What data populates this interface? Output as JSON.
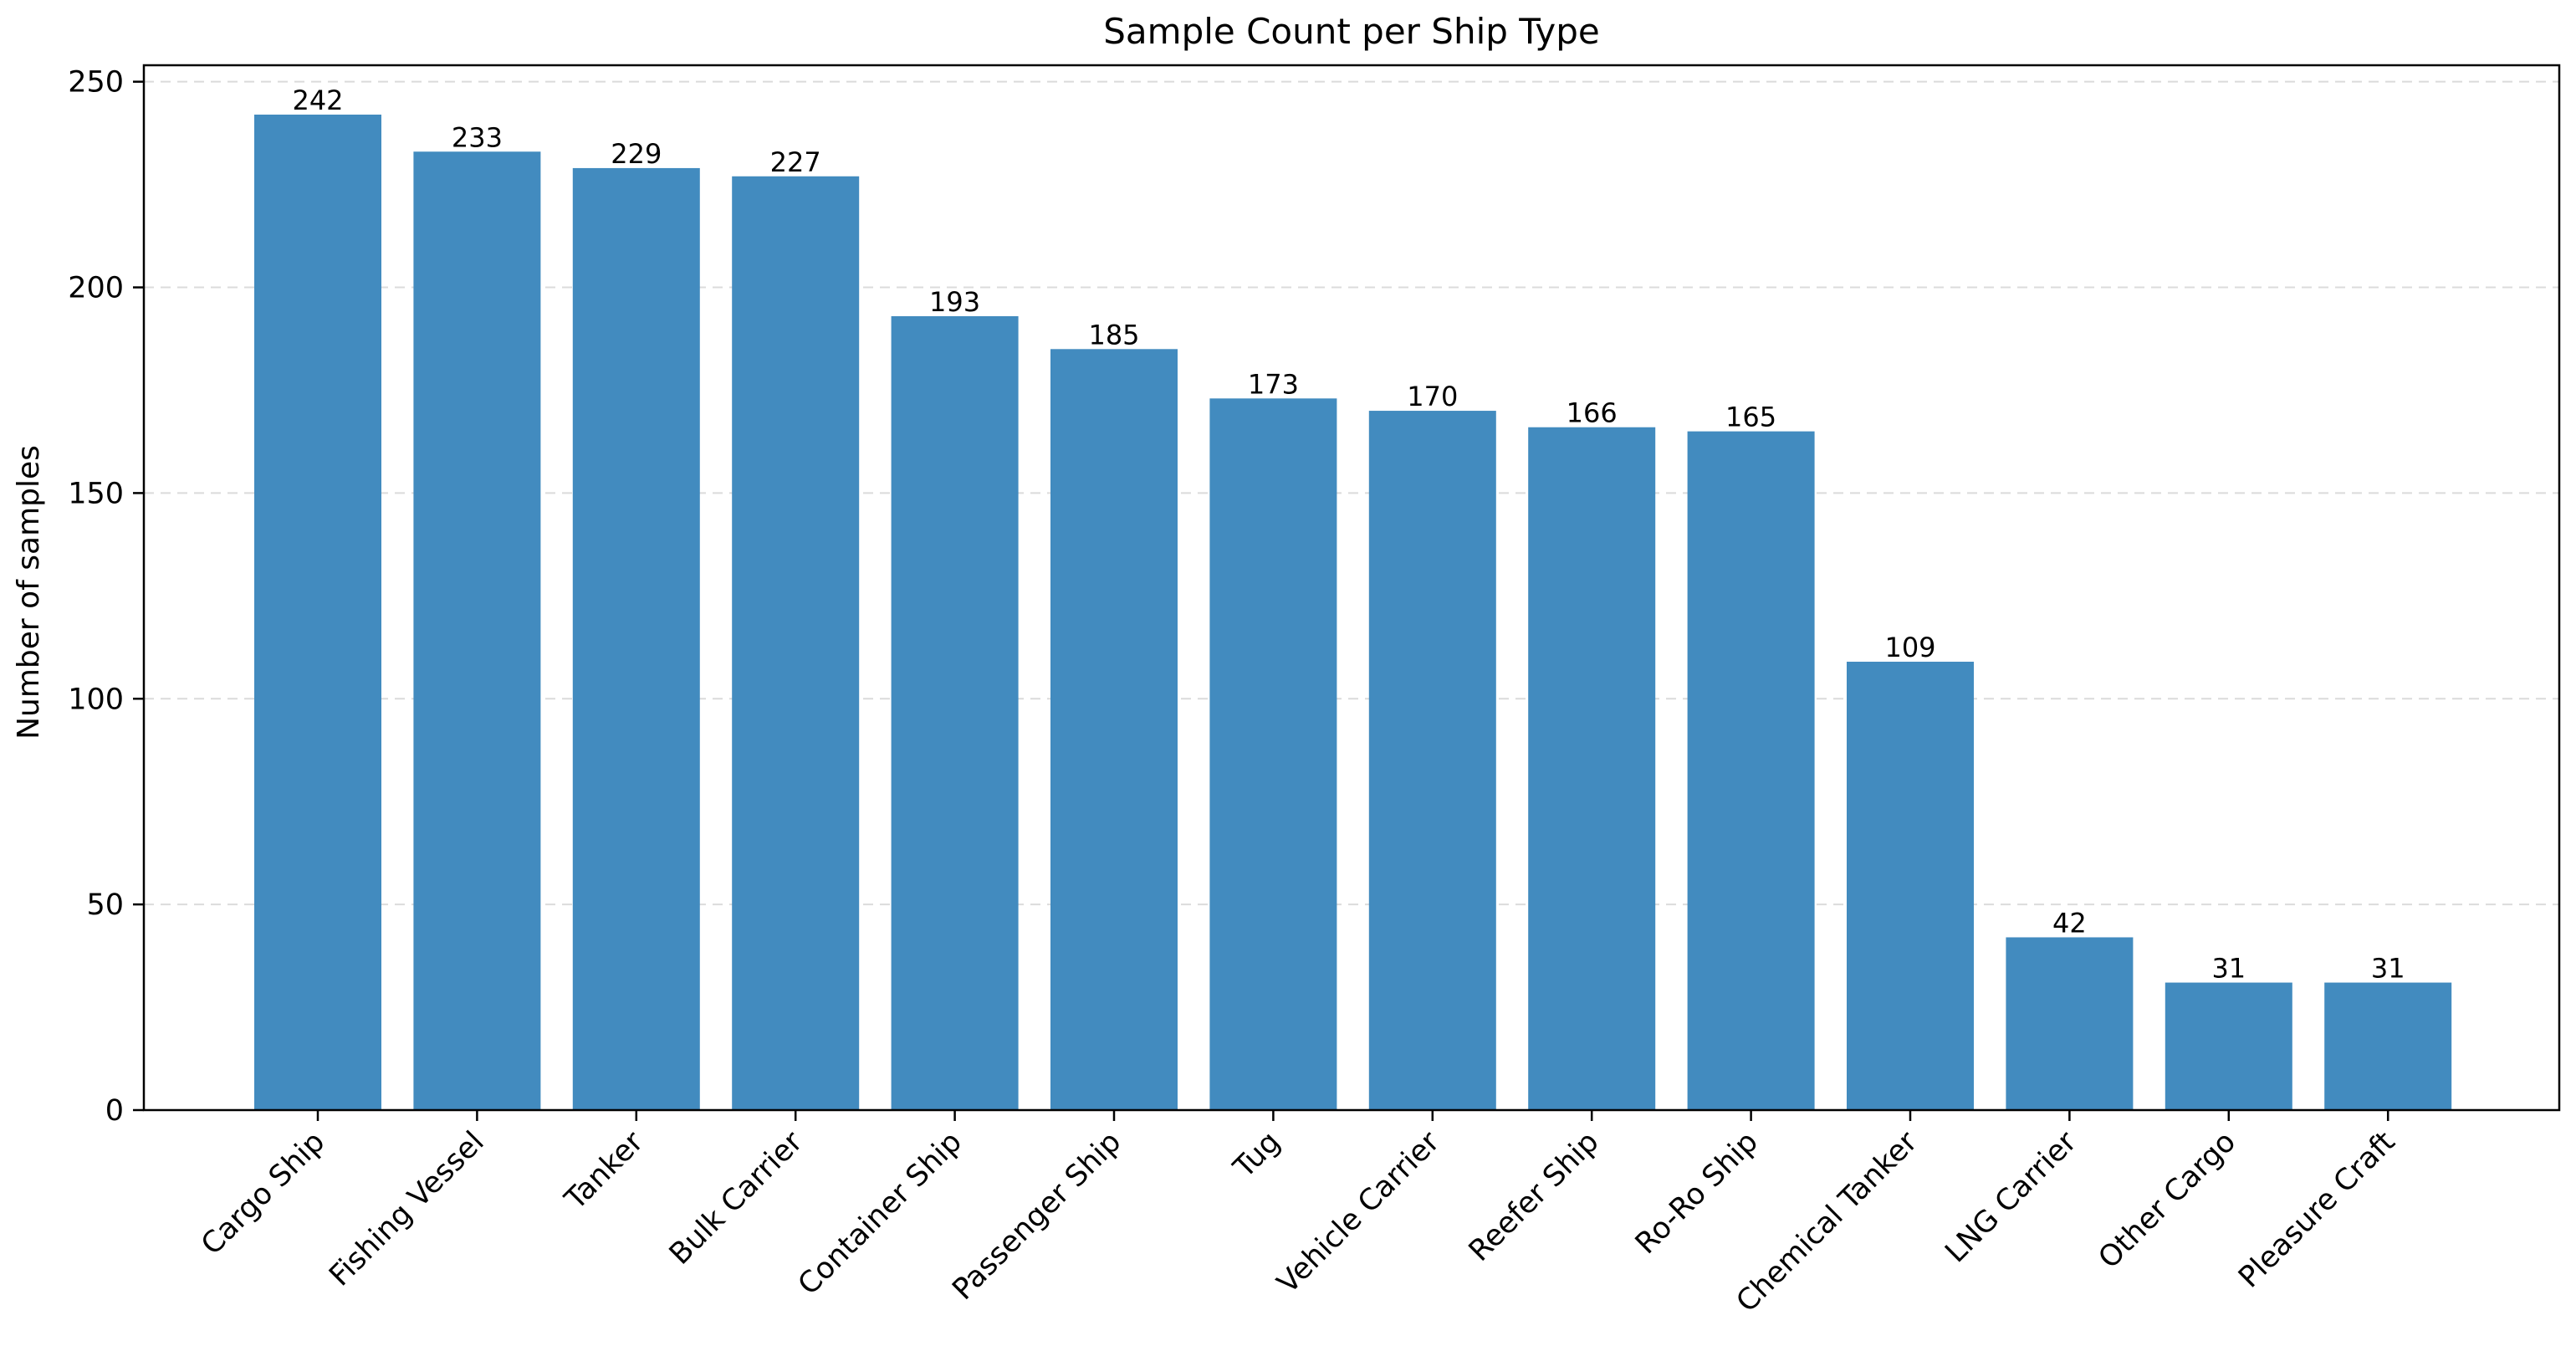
{
  "chart_data": {
    "type": "bar",
    "title": "Sample Count per Ship Type",
    "xlabel": "",
    "ylabel": "Number of samples",
    "categories": [
      "Cargo Ship",
      "Fishing Vessel",
      "Tanker",
      "Bulk Carrier",
      "Container Ship",
      "Passenger Ship",
      "Tug",
      "Vehicle Carrier",
      "Reefer Ship",
      "Ro-Ro Ship",
      "Chemical Tanker",
      "LNG Carrier",
      "Other Cargo",
      "Pleasure Craft"
    ],
    "values": [
      242,
      233,
      229,
      227,
      193,
      185,
      173,
      170,
      166,
      165,
      109,
      42,
      31,
      31
    ],
    "ylim": [
      0,
      254
    ],
    "yticks": [
      0,
      50,
      100,
      150,
      200,
      250
    ],
    "grid": "y-dashed",
    "bar_color": "#428bbf",
    "data_labels": true
  }
}
